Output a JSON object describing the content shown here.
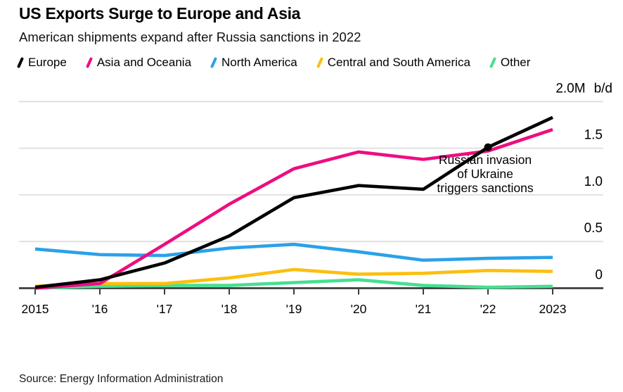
{
  "chart_data": {
    "type": "line",
    "title": "US Exports Surge to Europe and Asia",
    "subtitle": "American shipments expand after Russia sanctions in 2022",
    "source": "Source: Energy Information Administration",
    "x": [
      2015,
      2016,
      2017,
      2018,
      2019,
      2020,
      2021,
      2022,
      2023
    ],
    "x_tick_labels": [
      "2015",
      "'16",
      "'17",
      "'18",
      "'19",
      "'20",
      "'21",
      "'22",
      "2023"
    ],
    "ylim": [
      0,
      2.0
    ],
    "y_gridlines": [
      0,
      0.5,
      1.0,
      1.5,
      2.0
    ],
    "y_ticks": [
      {
        "value": 0,
        "label": "0"
      },
      {
        "value": 0.5,
        "label": "0.5"
      },
      {
        "value": 1.0,
        "label": "1.0"
      },
      {
        "value": 1.5,
        "label": "1.5"
      }
    ],
    "unit_label": {
      "value": "2.0M",
      "unit": "b/d"
    },
    "grid": true,
    "legend_position": "top",
    "series": [
      {
        "name": "Europe",
        "color": "#000000",
        "values": [
          0.01,
          0.09,
          0.27,
          0.56,
          0.97,
          1.1,
          1.06,
          1.51,
          1.83
        ]
      },
      {
        "name": "Asia and Oceania",
        "color": "#EE0D81",
        "values": [
          0.0,
          0.05,
          0.47,
          0.9,
          1.28,
          1.46,
          1.38,
          1.47,
          1.7
        ]
      },
      {
        "name": "North America",
        "color": "#2BA1E8",
        "values": [
          0.42,
          0.36,
          0.35,
          0.43,
          0.47,
          0.39,
          0.3,
          0.32,
          0.33
        ]
      },
      {
        "name": "Central and South America",
        "color": "#FCBF0F",
        "values": [
          0.02,
          0.05,
          0.05,
          0.11,
          0.2,
          0.15,
          0.16,
          0.19,
          0.18
        ]
      },
      {
        "name": "Other",
        "color": "#47DF93",
        "values": [
          0.0,
          0.02,
          0.03,
          0.03,
          0.06,
          0.09,
          0.03,
          0.01,
          0.02
        ]
      }
    ],
    "marker": {
      "series": "Europe",
      "x": 2022,
      "value": 1.51
    },
    "annotation_lines": [
      "Russian invasion",
      "of Ukraine",
      "triggers sanctions"
    ],
    "colors": {
      "gridline": "#DEDEDE",
      "axis": "#3C3C3C",
      "background": "#FFFFFF",
      "text": "#000000"
    }
  }
}
